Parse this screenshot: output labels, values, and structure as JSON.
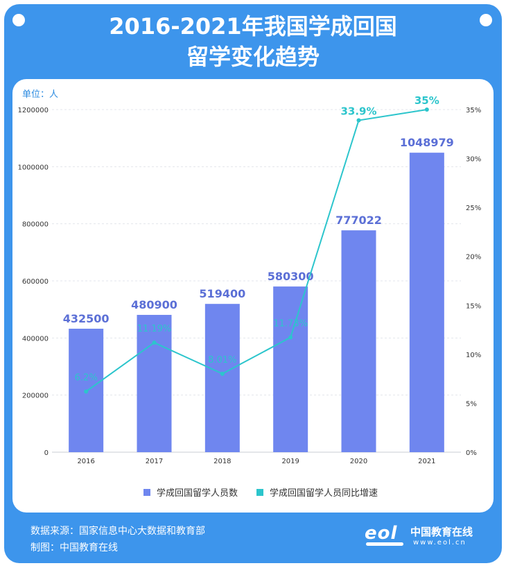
{
  "header": {
    "title_line1": "2016-2021年我国学成回国",
    "title_line2": "留学变化趋势"
  },
  "colors": {
    "frame": "#3d95ec",
    "bar": "#6f86ef",
    "line": "#2cc5cc",
    "bar_label": "#5b6fd6",
    "line_label": "#2cc5cc",
    "unit_text": "#2c8be0"
  },
  "chart_data": {
    "type": "bar",
    "unit_label": "单位：人",
    "categories": [
      "2016",
      "2017",
      "2018",
      "2019",
      "2020",
      "2021"
    ],
    "series": [
      {
        "name": "学成回国留学人员数",
        "type": "bar",
        "axis": "left",
        "values": [
          432500,
          480900,
          519400,
          580300,
          777022,
          1048979
        ],
        "labels": [
          "432500",
          "480900",
          "519400",
          "580300",
          "777022",
          "1048979"
        ]
      },
      {
        "name": "学成回国留学人员同比增速",
        "type": "line",
        "axis": "right",
        "values": [
          6.2,
          11.19,
          8.01,
          11.73,
          33.9,
          35
        ],
        "labels": [
          "6.2%",
          "11.19%",
          "8.01%",
          "11.73%",
          "33.9%",
          "35%"
        ]
      }
    ],
    "y_left": {
      "min": 0,
      "max": 1200000,
      "ticks": [
        0,
        200000,
        400000,
        600000,
        800000,
        1000000,
        1200000
      ]
    },
    "y_right": {
      "min": 0,
      "max": 35,
      "ticks": [
        "0%",
        "5%",
        "10%",
        "15%",
        "20%",
        "25%",
        "30%",
        "35%"
      ]
    },
    "grid": "horizontal-dashed",
    "legend_position": "bottom-center"
  },
  "footer": {
    "source": "数据来源：国家信息中心大数据和教育部",
    "credit": "制图：中国教育在线"
  },
  "logo": {
    "mark": "eol",
    "name": "中国教育在线",
    "url": "www.eol.cn"
  }
}
